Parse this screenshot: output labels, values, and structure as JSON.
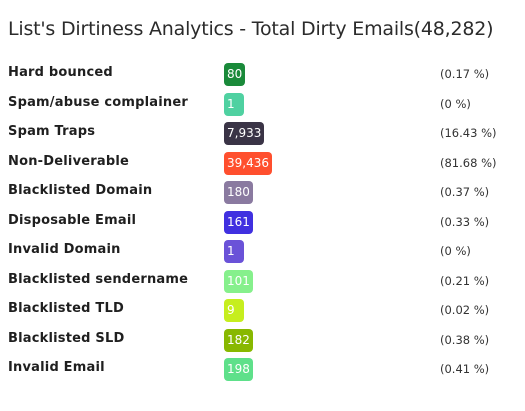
{
  "header": {
    "title": "List's Dirtiness Analytics - Total Dirty Emails(48,282)"
  },
  "rows": [
    {
      "label": "Hard bounced",
      "count": "80",
      "percent": "(0.17 %)",
      "color": "#1a8a3a"
    },
    {
      "label": "Spam/abuse complainer",
      "count": "1",
      "percent": "(0 %)",
      "color": "#4fd1a1"
    },
    {
      "label": "Spam Traps",
      "count": "7,933",
      "percent": "(16.43 %)",
      "color": "#3a3446"
    },
    {
      "label": "Non-Deliverable",
      "count": "39,436",
      "percent": "(81.68 %)",
      "color": "#ff4f2e"
    },
    {
      "label": "Blacklisted Domain",
      "count": "180",
      "percent": "(0.37 %)",
      "color": "#8a7aa0"
    },
    {
      "label": "Disposable Email",
      "count": "161",
      "percent": "(0.33 %)",
      "color": "#4030e0"
    },
    {
      "label": "Invalid Domain",
      "count": "1",
      "percent": "(0 %)",
      "color": "#6a52d8"
    },
    {
      "label": "Blacklisted sendername",
      "count": "101",
      "percent": "(0.21 %)",
      "color": "#86f08c"
    },
    {
      "label": "Blacklisted TLD",
      "count": "9",
      "percent": "(0.02 %)",
      "color": "#c6ee1e"
    },
    {
      "label": "Blacklisted SLD",
      "count": "182",
      "percent": "(0.38 %)",
      "color": "#88b800"
    },
    {
      "label": "Invalid Email",
      "count": "198",
      "percent": "(0.41 %)",
      "color": "#5ee08a"
    }
  ]
}
